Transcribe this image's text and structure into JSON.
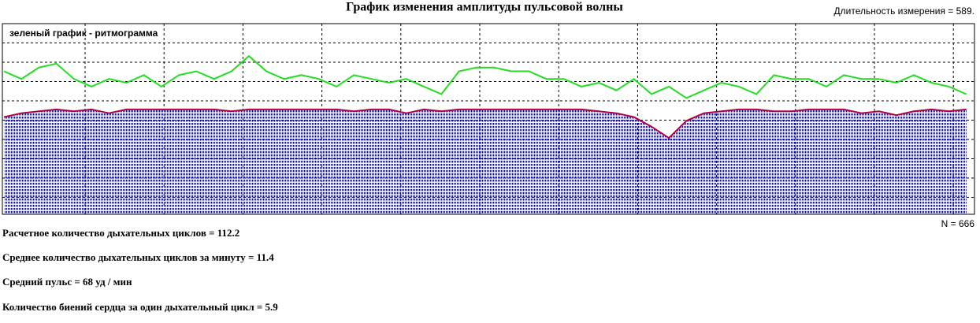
{
  "chart_data": {
    "type": "line",
    "title": "График изменения амплитуды пульсовой волны",
    "duration": "Длительность измерения = 589.",
    "annotation": "зеленый график - ритмограмма",
    "n_label": "N = 666",
    "x": [
      1,
      13,
      25,
      37,
      49,
      61,
      73,
      85,
      97,
      109,
      121,
      133,
      145,
      157,
      169,
      181,
      193,
      205,
      217,
      229,
      241,
      253,
      265,
      277,
      289,
      301,
      313,
      325,
      337,
      349,
      361,
      373,
      385,
      397,
      409,
      421,
      433,
      445,
      457,
      469,
      481,
      493,
      505,
      517,
      529,
      541,
      553,
      565,
      577,
      589,
      601,
      613,
      625,
      637,
      649,
      661
    ],
    "xlim": [
      1,
      666
    ],
    "ylim": [
      0,
      100
    ],
    "grid": true,
    "series": [
      {
        "color": "#22dd22",
        "values": [
          75,
          71,
          77,
          79,
          71,
          67,
          71,
          69,
          73,
          67,
          73,
          75,
          71,
          75,
          83,
          75,
          71,
          73,
          71,
          67,
          73,
          71,
          69,
          71,
          67,
          63,
          75,
          77,
          77,
          75,
          75,
          71,
          71,
          67,
          69,
          65,
          71,
          63,
          67,
          61,
          65,
          69,
          67,
          63,
          73,
          71,
          71,
          67,
          73,
          71,
          71,
          69,
          73,
          69,
          67,
          63
        ]
      },
      {
        "color": "#b0003a",
        "area_color": "#00008b",
        "values": [
          51,
          53,
          54,
          55,
          54,
          55,
          53,
          55,
          55,
          55,
          55,
          55,
          55,
          54,
          55,
          55,
          55,
          55,
          55,
          55,
          54,
          55,
          55,
          53,
          55,
          54,
          55,
          55,
          55,
          55,
          55,
          55,
          55,
          55,
          54,
          53,
          51,
          46,
          40,
          49,
          53,
          54,
          55,
          55,
          54,
          54,
          55,
          55,
          55,
          53,
          54,
          52,
          54,
          55,
          54,
          55
        ]
      }
    ]
  },
  "stats": [
    "Расчетное количество дыхательных циклов  =  112.2",
    "Среднее количество дыхательных циклов за минуту = 11.4",
    "Средний пульс =  68  уд / мин",
    "Количество биений сердца за один дыхательный цикл =  5.9"
  ]
}
